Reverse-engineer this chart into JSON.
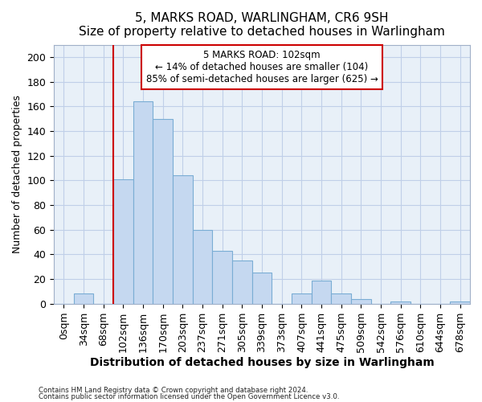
{
  "title": "5, MARKS ROAD, WARLINGHAM, CR6 9SH",
  "subtitle": "Size of property relative to detached houses in Warlingham",
  "xlabel": "Distribution of detached houses by size in Warlingham",
  "ylabel": "Number of detached properties",
  "categories": [
    "0sqm",
    "34sqm",
    "68sqm",
    "102sqm",
    "136sqm",
    "170sqm",
    "203sqm",
    "237sqm",
    "271sqm",
    "305sqm",
    "339sqm",
    "373sqm",
    "407sqm",
    "441sqm",
    "475sqm",
    "509sqm",
    "542sqm",
    "576sqm",
    "610sqm",
    "644sqm",
    "678sqm"
  ],
  "values": [
    0,
    8,
    0,
    101,
    164,
    150,
    104,
    60,
    43,
    35,
    25,
    0,
    8,
    19,
    8,
    4,
    0,
    2,
    0,
    0,
    2
  ],
  "bar_color": "#c5d8f0",
  "bar_edge_color": "#7aadd4",
  "red_line_index": 3,
  "annotation_line1": "5 MARKS ROAD: 102sqm",
  "annotation_line2": "← 14% of detached houses are smaller (104)",
  "annotation_line3": "85% of semi-detached houses are larger (625) →",
  "ylim": [
    0,
    210
  ],
  "yticks": [
    0,
    20,
    40,
    60,
    80,
    100,
    120,
    140,
    160,
    180,
    200
  ],
  "footer1": "Contains HM Land Registry data © Crown copyright and database right 2024.",
  "footer2": "Contains public sector information licensed under the Open Government Licence v3.0.",
  "red_line_color": "#cc0000",
  "grid_color": "#c0cfe8",
  "background_color": "#e8f0f8",
  "title_fontsize": 11,
  "subtitle_fontsize": 9.5,
  "xlabel_fontsize": 10,
  "ylabel_fontsize": 9,
  "tick_fontsize": 9,
  "annotation_fontsize": 8.5
}
